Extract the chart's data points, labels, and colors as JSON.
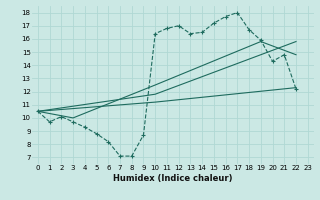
{
  "xlabel": "Humidex (Indice chaleur)",
  "bg_color": "#cbe8e4",
  "grid_color": "#b0d8d4",
  "line_color": "#1e6b5e",
  "xlim": [
    -0.5,
    23.5
  ],
  "ylim": [
    6.5,
    18.5
  ],
  "xticks": [
    0,
    1,
    2,
    3,
    4,
    5,
    6,
    7,
    8,
    9,
    10,
    11,
    12,
    13,
    14,
    15,
    16,
    17,
    18,
    19,
    20,
    21,
    22,
    23
  ],
  "yticks": [
    7,
    8,
    9,
    10,
    11,
    12,
    13,
    14,
    15,
    16,
    17,
    18
  ],
  "line1_x": [
    0,
    1,
    2,
    3,
    4,
    5,
    6,
    7,
    8,
    9,
    10,
    11,
    12,
    13,
    14,
    15,
    16,
    17,
    18,
    19,
    20,
    21,
    22
  ],
  "line1_y": [
    10.5,
    9.7,
    10.1,
    9.7,
    9.3,
    8.8,
    8.2,
    7.1,
    7.1,
    8.7,
    16.4,
    16.8,
    17.0,
    16.4,
    16.5,
    17.2,
    17.7,
    18.0,
    16.7,
    15.9,
    14.3,
    14.8,
    12.2
  ],
  "line2_x": [
    0,
    10,
    22
  ],
  "line2_y": [
    10.5,
    11.8,
    15.8
  ],
  "line3_x": [
    0,
    10,
    22
  ],
  "line3_y": [
    10.5,
    11.2,
    12.3
  ],
  "line4_x": [
    0,
    3,
    10,
    19,
    22
  ],
  "line4_y": [
    10.5,
    10.0,
    12.5,
    15.8,
    14.8
  ],
  "xlabel_fontsize": 6,
  "tick_fontsize": 5
}
